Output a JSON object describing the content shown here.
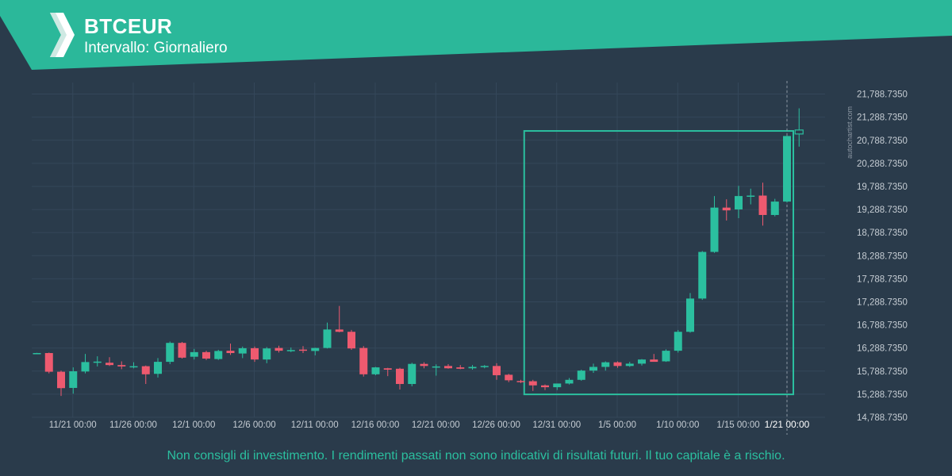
{
  "header": {
    "symbol": "BTCEUR",
    "interval": "Intervallo: Giornaliero",
    "logo": "autochartist-logo-icon"
  },
  "watermark": "autochartist.com",
  "disclaimer": "Non consigli di investimento. I rendimenti passati non sono indicativi di risultati futuri. Il tuo capitale è a rischio.",
  "colors": {
    "background": "#2a3b4b",
    "brand": "#2bb89a",
    "up": "#2bbf9f",
    "down": "#ee5a6f",
    "grid": "#34475a",
    "axis_text": "#c5ccd3",
    "pattern_box": "#2bbf9f"
  },
  "chart_data": {
    "type": "candlestick",
    "title": "BTCEUR",
    "ylim": [
      14788.735,
      22038.735
    ],
    "y_ticks": [
      14788.735,
      15288.735,
      15788.735,
      16288.735,
      16788.735,
      17288.735,
      17788.735,
      18288.735,
      18788.735,
      19288.735,
      19788.735,
      20288.735,
      20788.735,
      21288.735,
      21788.735
    ],
    "y_tick_labels": [
      "14,788.7350",
      "15,288.7350",
      "15,788.7350",
      "16,288.7350",
      "16,788.7350",
      "17,288.7350",
      "17,788.7350",
      "18,288.7350",
      "18,788.7350",
      "19,288.7350",
      "19,788.7350",
      "20,288.7350",
      "20,788.7350",
      "21,288.7350",
      "21,788.7350"
    ],
    "x_tick_labels": [
      {
        "date": "11/21",
        "label": "11/21 00:00"
      },
      {
        "date": "11/26",
        "label": "11/26 00:00"
      },
      {
        "date": "12/1",
        "label": "12/1 00:00"
      },
      {
        "date": "12/6",
        "label": "12/6 00:00"
      },
      {
        "date": "12/11",
        "label": "12/11 00:00"
      },
      {
        "date": "12/16",
        "label": "12/16 00:00"
      },
      {
        "date": "12/21",
        "label": "12/21 00:00"
      },
      {
        "date": "12/26",
        "label": "12/26 00:00"
      },
      {
        "date": "12/31",
        "label": "12/31 00:00"
      },
      {
        "date": "1/5",
        "label": "1/5 00:00"
      },
      {
        "date": "1/10",
        "label": "1/10 00:00"
      },
      {
        "date": "1/15",
        "label": "1/15 00:00"
      },
      {
        "date": "1/21",
        "label": "1/21 00:00",
        "highlight": true
      }
    ],
    "current_date_label": "1/21 00:00",
    "candles": [
      {
        "date": "11/20",
        "o": 16175,
        "h": 16185,
        "l": 16170,
        "c": 16180
      },
      {
        "date": "11/21",
        "o": 16180,
        "h": 16190,
        "l": 15740,
        "c": 15775
      },
      {
        "date": "11/22",
        "o": 15775,
        "h": 15800,
        "l": 15250,
        "c": 15420
      },
      {
        "date": "11/23",
        "o": 15425,
        "h": 15870,
        "l": 15300,
        "c": 15785
      },
      {
        "date": "11/24",
        "o": 15780,
        "h": 16160,
        "l": 15740,
        "c": 15985
      },
      {
        "date": "11/25",
        "o": 15985,
        "h": 16110,
        "l": 15890,
        "c": 15995
      },
      {
        "date": "11/26",
        "o": 15970,
        "h": 16090,
        "l": 15900,
        "c": 15920
      },
      {
        "date": "11/27",
        "o": 15920,
        "h": 16000,
        "l": 15830,
        "c": 15890
      },
      {
        "date": "11/28",
        "o": 15880,
        "h": 15980,
        "l": 15850,
        "c": 15895
      },
      {
        "date": "11/29",
        "o": 15895,
        "h": 15910,
        "l": 15510,
        "c": 15720
      },
      {
        "date": "11/30",
        "o": 15730,
        "h": 16070,
        "l": 15650,
        "c": 15990
      },
      {
        "date": "12/1",
        "o": 15990,
        "h": 16430,
        "l": 15940,
        "c": 16400
      },
      {
        "date": "12/2",
        "o": 16400,
        "h": 16420,
        "l": 16060,
        "c": 16080
      },
      {
        "date": "12/3",
        "o": 16100,
        "h": 16270,
        "l": 16040,
        "c": 16200
      },
      {
        "date": "12/4",
        "o": 16200,
        "h": 16230,
        "l": 16030,
        "c": 16060
      },
      {
        "date": "12/5",
        "o": 16050,
        "h": 16250,
        "l": 16030,
        "c": 16225
      },
      {
        "date": "12/6",
        "o": 16230,
        "h": 16385,
        "l": 16140,
        "c": 16180
      },
      {
        "date": "12/7",
        "o": 16170,
        "h": 16320,
        "l": 16070,
        "c": 16285
      },
      {
        "date": "12/8",
        "o": 16285,
        "h": 16320,
        "l": 15990,
        "c": 16040
      },
      {
        "date": "12/9",
        "o": 16040,
        "h": 16310,
        "l": 15960,
        "c": 16280
      },
      {
        "date": "12/10",
        "o": 16290,
        "h": 16340,
        "l": 16190,
        "c": 16230
      },
      {
        "date": "12/11",
        "o": 16240,
        "h": 16300,
        "l": 16200,
        "c": 16245
      },
      {
        "date": "12/12",
        "o": 16255,
        "h": 16330,
        "l": 16180,
        "c": 16230
      },
      {
        "date": "12/13",
        "o": 16225,
        "h": 16295,
        "l": 16130,
        "c": 16290
      },
      {
        "date": "12/14",
        "o": 16290,
        "h": 16840,
        "l": 16280,
        "c": 16690
      },
      {
        "date": "12/15",
        "o": 16690,
        "h": 17200,
        "l": 16630,
        "c": 16640
      },
      {
        "date": "12/16",
        "o": 16640,
        "h": 16680,
        "l": 16250,
        "c": 16280
      },
      {
        "date": "12/17",
        "o": 16290,
        "h": 16330,
        "l": 15670,
        "c": 15720
      },
      {
        "date": "12/18",
        "o": 15720,
        "h": 15880,
        "l": 15700,
        "c": 15870
      },
      {
        "date": "12/19",
        "o": 15850,
        "h": 15860,
        "l": 15680,
        "c": 15820
      },
      {
        "date": "12/20",
        "o": 15840,
        "h": 15860,
        "l": 15390,
        "c": 15510
      },
      {
        "date": "12/21",
        "o": 15510,
        "h": 15970,
        "l": 15460,
        "c": 15945
      },
      {
        "date": "12/22",
        "o": 15945,
        "h": 15980,
        "l": 15850,
        "c": 15900
      },
      {
        "date": "12/23",
        "o": 15880,
        "h": 15935,
        "l": 15690,
        "c": 15890
      },
      {
        "date": "12/24",
        "o": 15900,
        "h": 15940,
        "l": 15840,
        "c": 15850
      },
      {
        "date": "12/25",
        "o": 15870,
        "h": 15920,
        "l": 15830,
        "c": 15840
      },
      {
        "date": "12/26",
        "o": 15850,
        "h": 15920,
        "l": 15820,
        "c": 15880
      },
      {
        "date": "12/27",
        "o": 15880,
        "h": 15920,
        "l": 15850,
        "c": 15900
      },
      {
        "date": "12/28",
        "o": 15900,
        "h": 15960,
        "l": 15600,
        "c": 15700
      },
      {
        "date": "12/29",
        "o": 15710,
        "h": 15730,
        "l": 15550,
        "c": 15590
      },
      {
        "date": "12/30",
        "o": 15575,
        "h": 15600,
        "l": 15530,
        "c": 15570
      },
      {
        "date": "12/31",
        "o": 15570,
        "h": 15600,
        "l": 15360,
        "c": 15480
      },
      {
        "date": "1/1",
        "o": 15480,
        "h": 15500,
        "l": 15380,
        "c": 15440
      },
      {
        "date": "1/2",
        "o": 15440,
        "h": 15520,
        "l": 15380,
        "c": 15520
      },
      {
        "date": "1/3",
        "o": 15520,
        "h": 15640,
        "l": 15500,
        "c": 15600
      },
      {
        "date": "1/4",
        "o": 15600,
        "h": 15820,
        "l": 15580,
        "c": 15800
      },
      {
        "date": "1/5",
        "o": 15800,
        "h": 15950,
        "l": 15750,
        "c": 15880
      },
      {
        "date": "1/6",
        "o": 15880,
        "h": 16000,
        "l": 15800,
        "c": 15980
      },
      {
        "date": "1/7",
        "o": 15980,
        "h": 16000,
        "l": 15860,
        "c": 15900
      },
      {
        "date": "1/8",
        "o": 15900,
        "h": 15990,
        "l": 15880,
        "c": 15950
      },
      {
        "date": "1/9",
        "o": 15950,
        "h": 16050,
        "l": 15910,
        "c": 16040
      },
      {
        "date": "1/10",
        "o": 16040,
        "h": 16160,
        "l": 16000,
        "c": 15990
      },
      {
        "date": "1/11",
        "o": 16000,
        "h": 16260,
        "l": 15990,
        "c": 16230
      },
      {
        "date": "1/12",
        "o": 16230,
        "h": 16680,
        "l": 16190,
        "c": 16640
      },
      {
        "date": "1/13",
        "o": 16640,
        "h": 17480,
        "l": 16620,
        "c": 17360
      },
      {
        "date": "1/14",
        "o": 17360,
        "h": 18390,
        "l": 17330,
        "c": 18370
      },
      {
        "date": "1/15",
        "o": 18370,
        "h": 19580,
        "l": 18350,
        "c": 19330
      },
      {
        "date": "1/16",
        "o": 19330,
        "h": 19510,
        "l": 19050,
        "c": 19270
      },
      {
        "date": "1/17",
        "o": 19290,
        "h": 19800,
        "l": 19100,
        "c": 19580
      },
      {
        "date": "1/18",
        "o": 19580,
        "h": 19740,
        "l": 19400,
        "c": 19590
      },
      {
        "date": "1/19",
        "o": 19590,
        "h": 19870,
        "l": 18940,
        "c": 19170
      },
      {
        "date": "1/20",
        "o": 19170,
        "h": 19520,
        "l": 19140,
        "c": 19460
      },
      {
        "date": "1/21",
        "o": 19460,
        "h": 20890,
        "l": 19440,
        "c": 20880
      },
      {
        "date": "1/22",
        "o": 20930,
        "h": 21480,
        "l": 20650,
        "c": 21010
      }
    ],
    "pattern_box": {
      "start": "12/31",
      "end": "1/21",
      "top": 20990,
      "bottom": 15285
    }
  }
}
